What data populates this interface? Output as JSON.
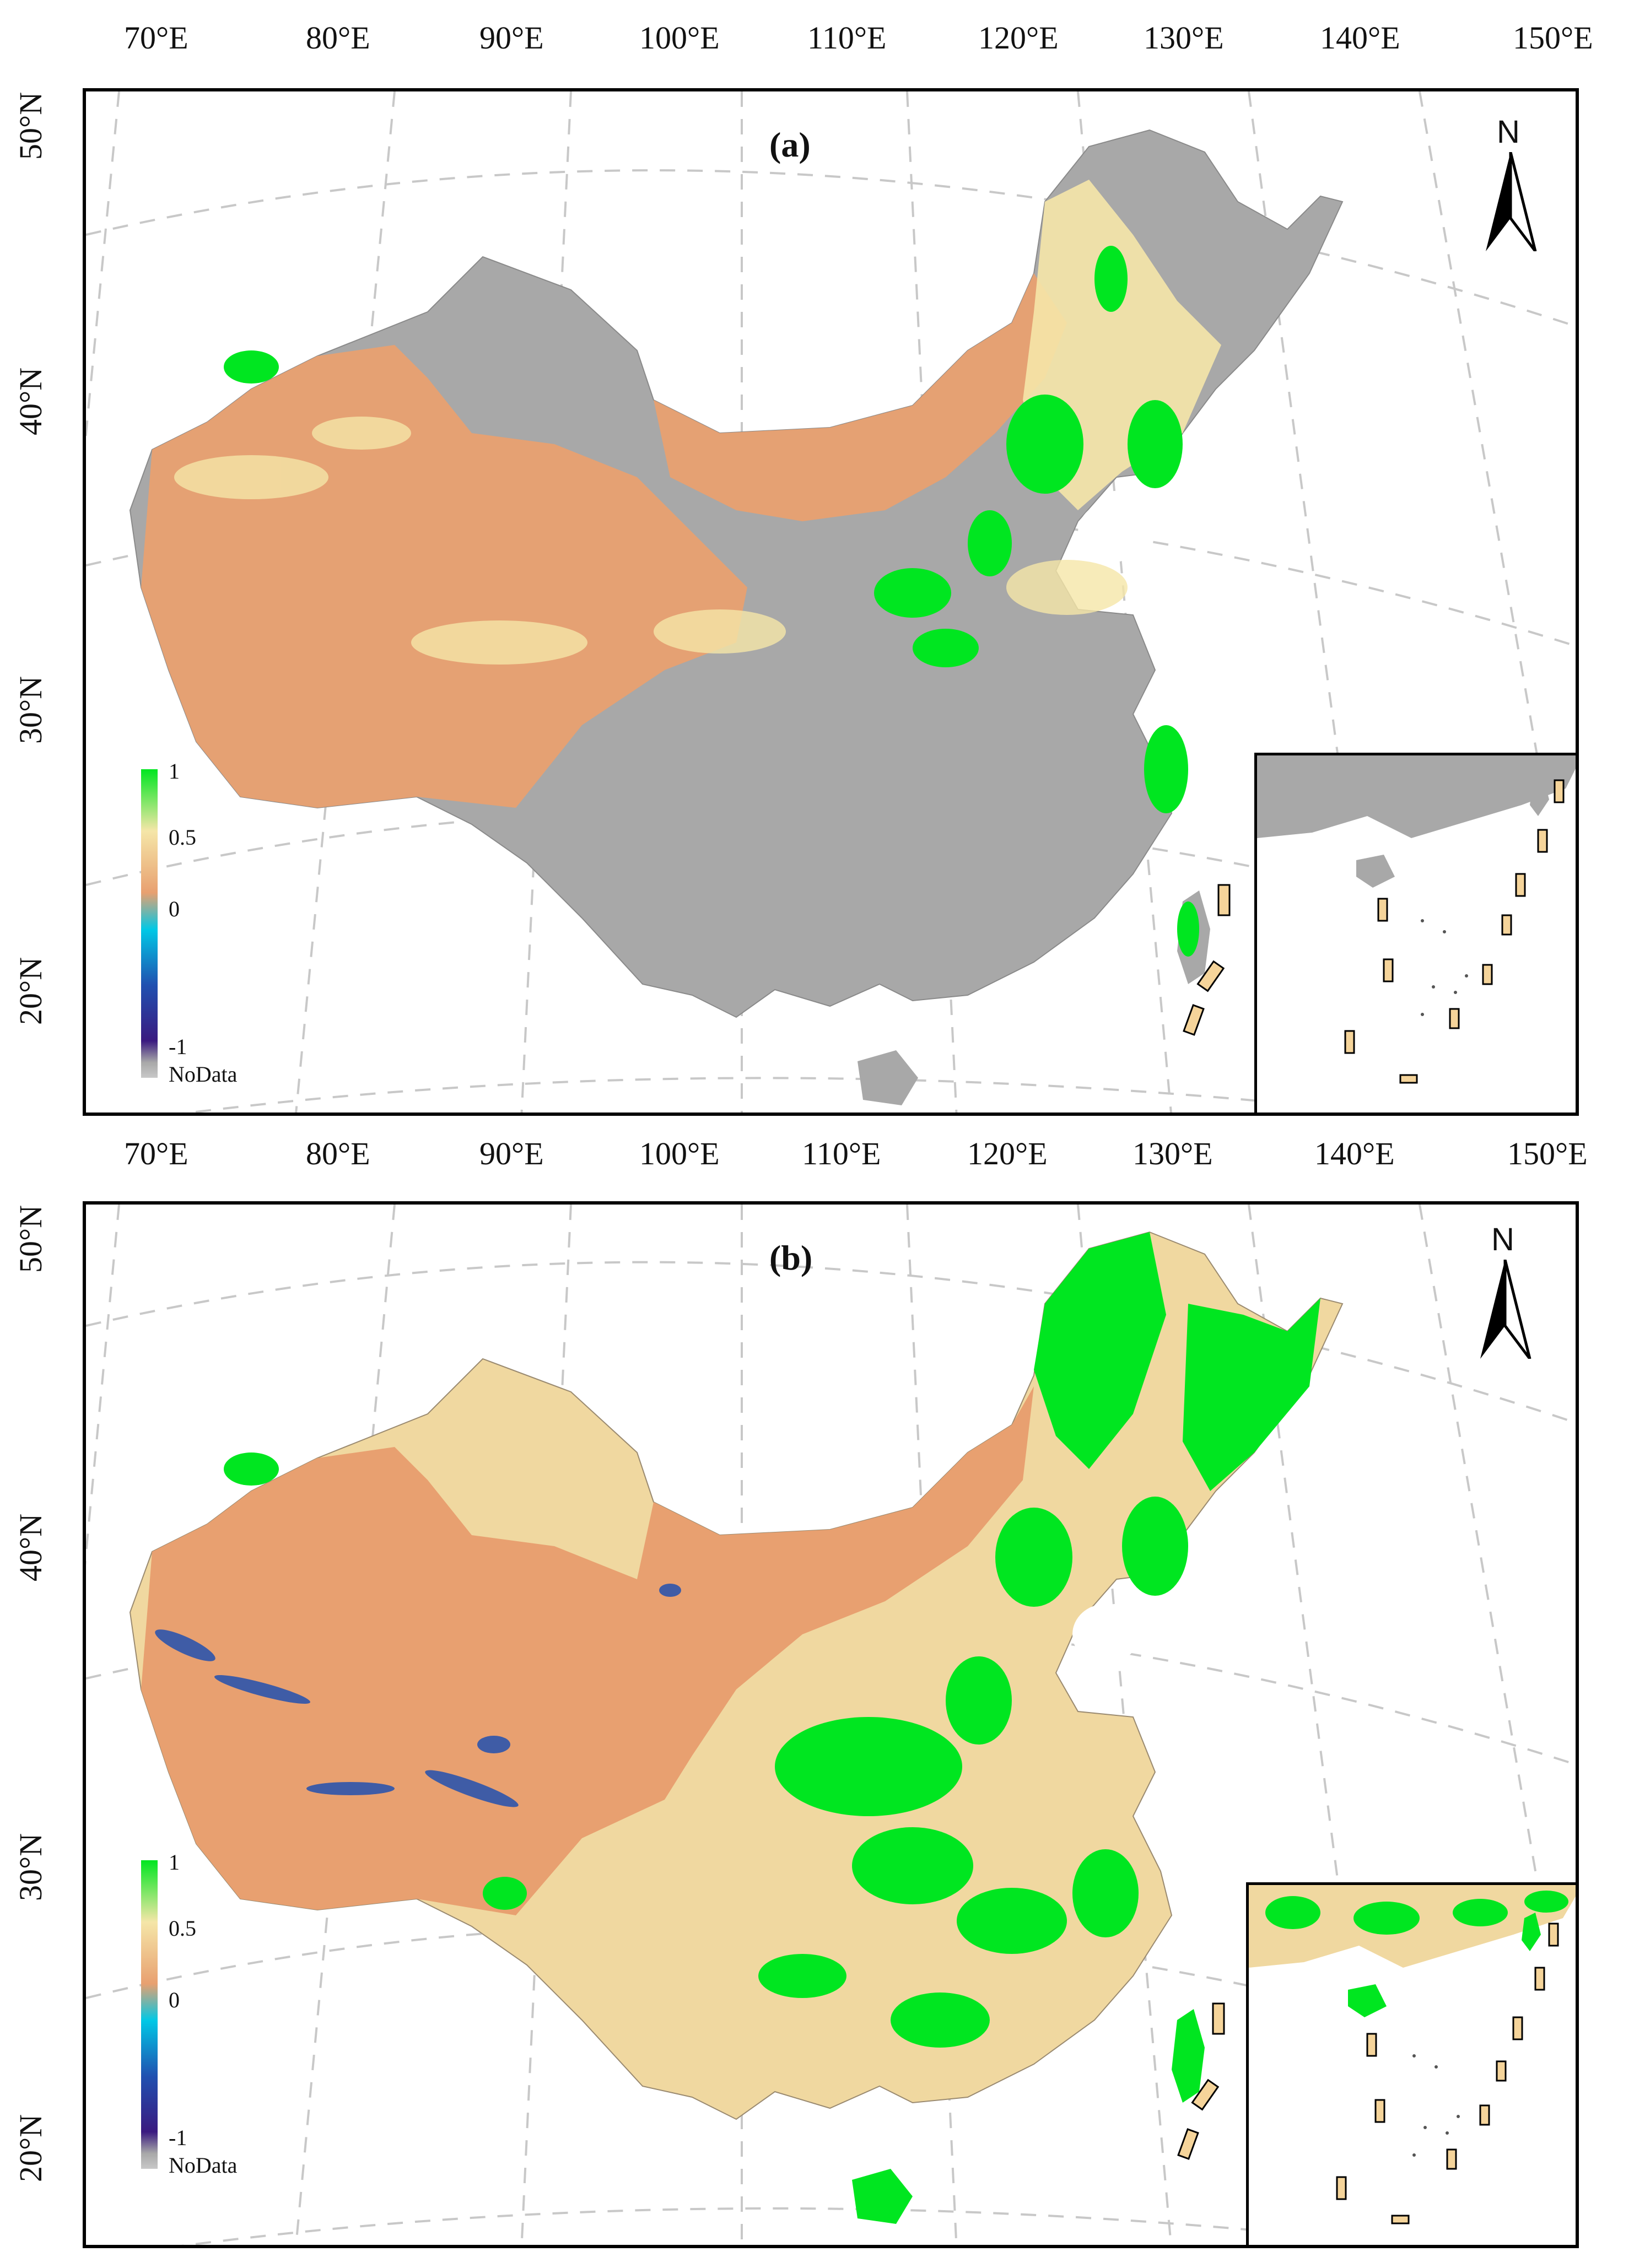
{
  "longitude_labels": [
    "70°E",
    "80°E",
    "90°E",
    "100°E",
    "110°E",
    "120°E",
    "130°E",
    "140°E",
    "150°E"
  ],
  "latitude_labels": [
    "50°N",
    "40°N",
    "30°N",
    "20°N"
  ],
  "panels": [
    {
      "title": "(a)",
      "north_label": "N",
      "legend": {
        "max": "1",
        "mid": "0.5",
        "zero": "0",
        "min": "-1",
        "nodata": "NoData"
      }
    },
    {
      "title": "(b)",
      "north_label": "N",
      "legend": {
        "max": "1",
        "mid": "0.5",
        "zero": "0",
        "min": "-1",
        "nodata": "NoData"
      }
    }
  ],
  "colors": {
    "high": "#00e620",
    "mid": "#f5e6a8",
    "zero": "#e8a070",
    "low_cyan": "#00c8e6",
    "low_blue": "#2050b0",
    "min": "#3a1a80",
    "nodata": "#a8a8a8",
    "frame": "#000000",
    "graticule": "#c8c8c8"
  }
}
